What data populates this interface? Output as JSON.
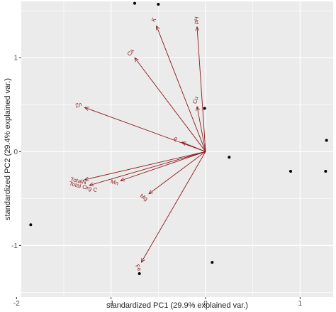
{
  "chart_data": {
    "type": "scatter",
    "title": "",
    "xlabel": "standardized PC1 (29.9% explained var.)",
    "ylabel": "standardized PC2 (29.4% explained var.)",
    "xlim": [
      -1.95,
      1.35
    ],
    "ylim": [
      -1.55,
      1.6
    ],
    "xticks": [
      -2,
      -1,
      0,
      1
    ],
    "xtick_labels": [
      "-2",
      "-1",
      "0",
      "1"
    ],
    "yticks": [
      -1,
      0,
      1
    ],
    "ytick_labels": [
      "-1",
      "0",
      "1"
    ],
    "grid": true,
    "panel_color": "#ebebeb",
    "grid_color": "#ffffff",
    "point_color": "#000000",
    "arrow_color": "#8b1a1a",
    "points": [
      {
        "x": -0.75,
        "y": 1.58
      },
      {
        "x": -0.5,
        "y": 1.57
      },
      {
        "x": -0.01,
        "y": 0.46
      },
      {
        "x": 0.25,
        "y": -0.06
      },
      {
        "x": -1.85,
        "y": -0.78
      },
      {
        "x": 0.07,
        "y": -1.18
      },
      {
        "x": -0.7,
        "y": -1.3
      },
      {
        "x": 0.9,
        "y": -0.21
      },
      {
        "x": 1.27,
        "y": -0.21
      },
      {
        "x": 1.28,
        "y": 0.12
      }
    ],
    "loadings": [
      {
        "label": "pH",
        "x": -0.09,
        "y": 1.33,
        "label_rotation": 80
      },
      {
        "label": "K",
        "x": -0.52,
        "y": 1.34,
        "label_rotation": 61
      },
      {
        "label": "Ca",
        "x": -0.75,
        "y": 1.0,
        "label_rotation": 52
      },
      {
        "label": "Cu",
        "x": -0.09,
        "y": 0.48,
        "label_rotation": 75
      },
      {
        "label": "Zn",
        "x": -1.28,
        "y": 0.47,
        "label_rotation": 18
      },
      {
        "label": "P",
        "x": -0.25,
        "y": 0.1,
        "label_rotation": 20
      },
      {
        "label": "TotalN",
        "x": -1.28,
        "y": -0.3,
        "label_rotation": -12
      },
      {
        "label": "Total Org C",
        "x": -1.23,
        "y": -0.36,
        "label_rotation": -14
      },
      {
        "label": "Mn",
        "x": -0.9,
        "y": -0.31,
        "label_rotation": -16
      },
      {
        "label": "Mg",
        "x": -0.6,
        "y": -0.45,
        "label_rotation": -30
      },
      {
        "label": "Fe",
        "x": -0.68,
        "y": -1.18,
        "label_rotation": -61
      }
    ]
  }
}
